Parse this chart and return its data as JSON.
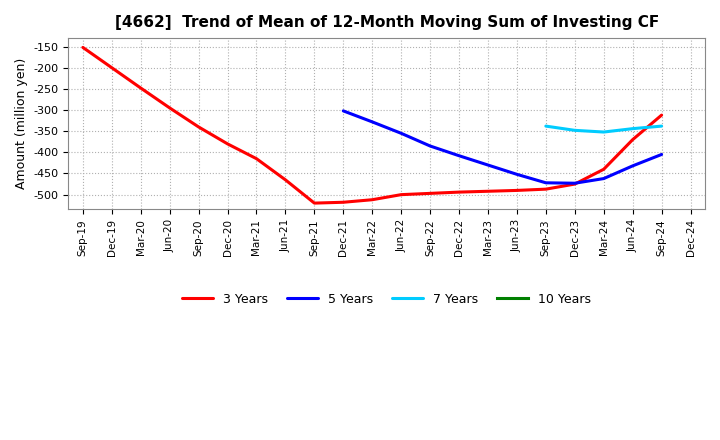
{
  "title": "[4662]  Trend of Mean of 12-Month Moving Sum of Investing CF",
  "ylabel": "Amount (million yen)",
  "background_color": "#ffffff",
  "grid_color": "#b0b0b0",
  "ylim": [
    -535,
    -130
  ],
  "yticks": [
    -500,
    -450,
    -400,
    -350,
    -300,
    -250,
    -200,
    -150
  ],
  "series": {
    "3 Years": {
      "color": "#ff0000",
      "x": [
        "Sep-19",
        "Dec-19",
        "Mar-20",
        "Jun-20",
        "Sep-20",
        "Dec-20",
        "Mar-21",
        "Jun-21",
        "Sep-21",
        "Dec-21",
        "Mar-22",
        "Jun-22",
        "Sep-22",
        "Dec-22",
        "Mar-23",
        "Jun-23",
        "Sep-23",
        "Dec-23",
        "Mar-24",
        "Jun-24",
        "Sep-24"
      ],
      "y": [
        -152,
        -200,
        -248,
        -295,
        -340,
        -380,
        -415,
        -465,
        -520,
        -518,
        -512,
        -500,
        -497,
        -494,
        -492,
        -490,
        -487,
        -475,
        -440,
        -370,
        -312
      ]
    },
    "5 Years": {
      "color": "#0000ff",
      "x": [
        "Dec-21",
        "Mar-22",
        "Jun-22",
        "Sep-22",
        "Dec-22",
        "Mar-23",
        "Jun-23",
        "Sep-23",
        "Dec-23",
        "Mar-24",
        "Jun-24",
        "Sep-24"
      ],
      "y": [
        -302,
        -328,
        -355,
        -385,
        -408,
        -430,
        -452,
        -472,
        -473,
        -462,
        -432,
        -405
      ]
    },
    "7 Years": {
      "color": "#00ccff",
      "x": [
        "Sep-23",
        "Dec-23",
        "Mar-24",
        "Jun-24",
        "Sep-24"
      ],
      "y": [
        -338,
        -348,
        -352,
        -344,
        -338
      ]
    },
    "10 Years": {
      "color": "#008000",
      "x": [],
      "y": []
    }
  },
  "x_labels": [
    "Sep-19",
    "Dec-19",
    "Mar-20",
    "Jun-20",
    "Sep-20",
    "Dec-20",
    "Mar-21",
    "Jun-21",
    "Sep-21",
    "Dec-21",
    "Mar-22",
    "Jun-22",
    "Sep-22",
    "Dec-22",
    "Mar-23",
    "Jun-23",
    "Sep-23",
    "Dec-23",
    "Mar-24",
    "Jun-24",
    "Sep-24",
    "Dec-24"
  ],
  "legend_order": [
    "3 Years",
    "5 Years",
    "7 Years",
    "10 Years"
  ]
}
